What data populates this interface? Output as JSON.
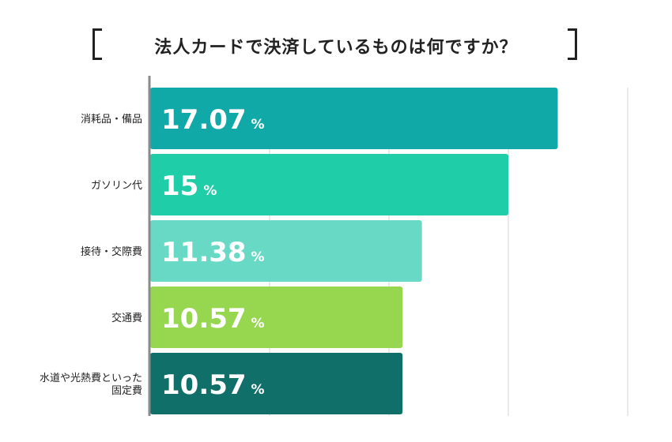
{
  "title": "法人カードで決済しているものは何ですか？",
  "chart_data": {
    "type": "bar",
    "orientation": "horizontal",
    "title": "法人カードで決済しているものは何ですか？",
    "categories": [
      "消耗品・備品",
      "ガソリン代",
      "接待・交際費",
      "交通費",
      "水道や光熱費といった固定費"
    ],
    "category_lines": [
      [
        "消耗品・備品"
      ],
      [
        "ガソリン代"
      ],
      [
        "接待・交際費"
      ],
      [
        "交通費"
      ],
      [
        "水道や光熱費といった",
        "固定費"
      ]
    ],
    "values": [
      17.07,
      15,
      11.38,
      10.57,
      10.57
    ],
    "value_labels": [
      "17.07",
      "15",
      "11.38",
      "10.57",
      "10.57"
    ],
    "unit": "%",
    "colors": [
      "#11a8a8",
      "#20cda9",
      "#67d9c4",
      "#96d74f",
      "#106f69"
    ],
    "xlim": [
      0,
      20
    ],
    "grid": true,
    "xlabel": "",
    "ylabel": ""
  }
}
